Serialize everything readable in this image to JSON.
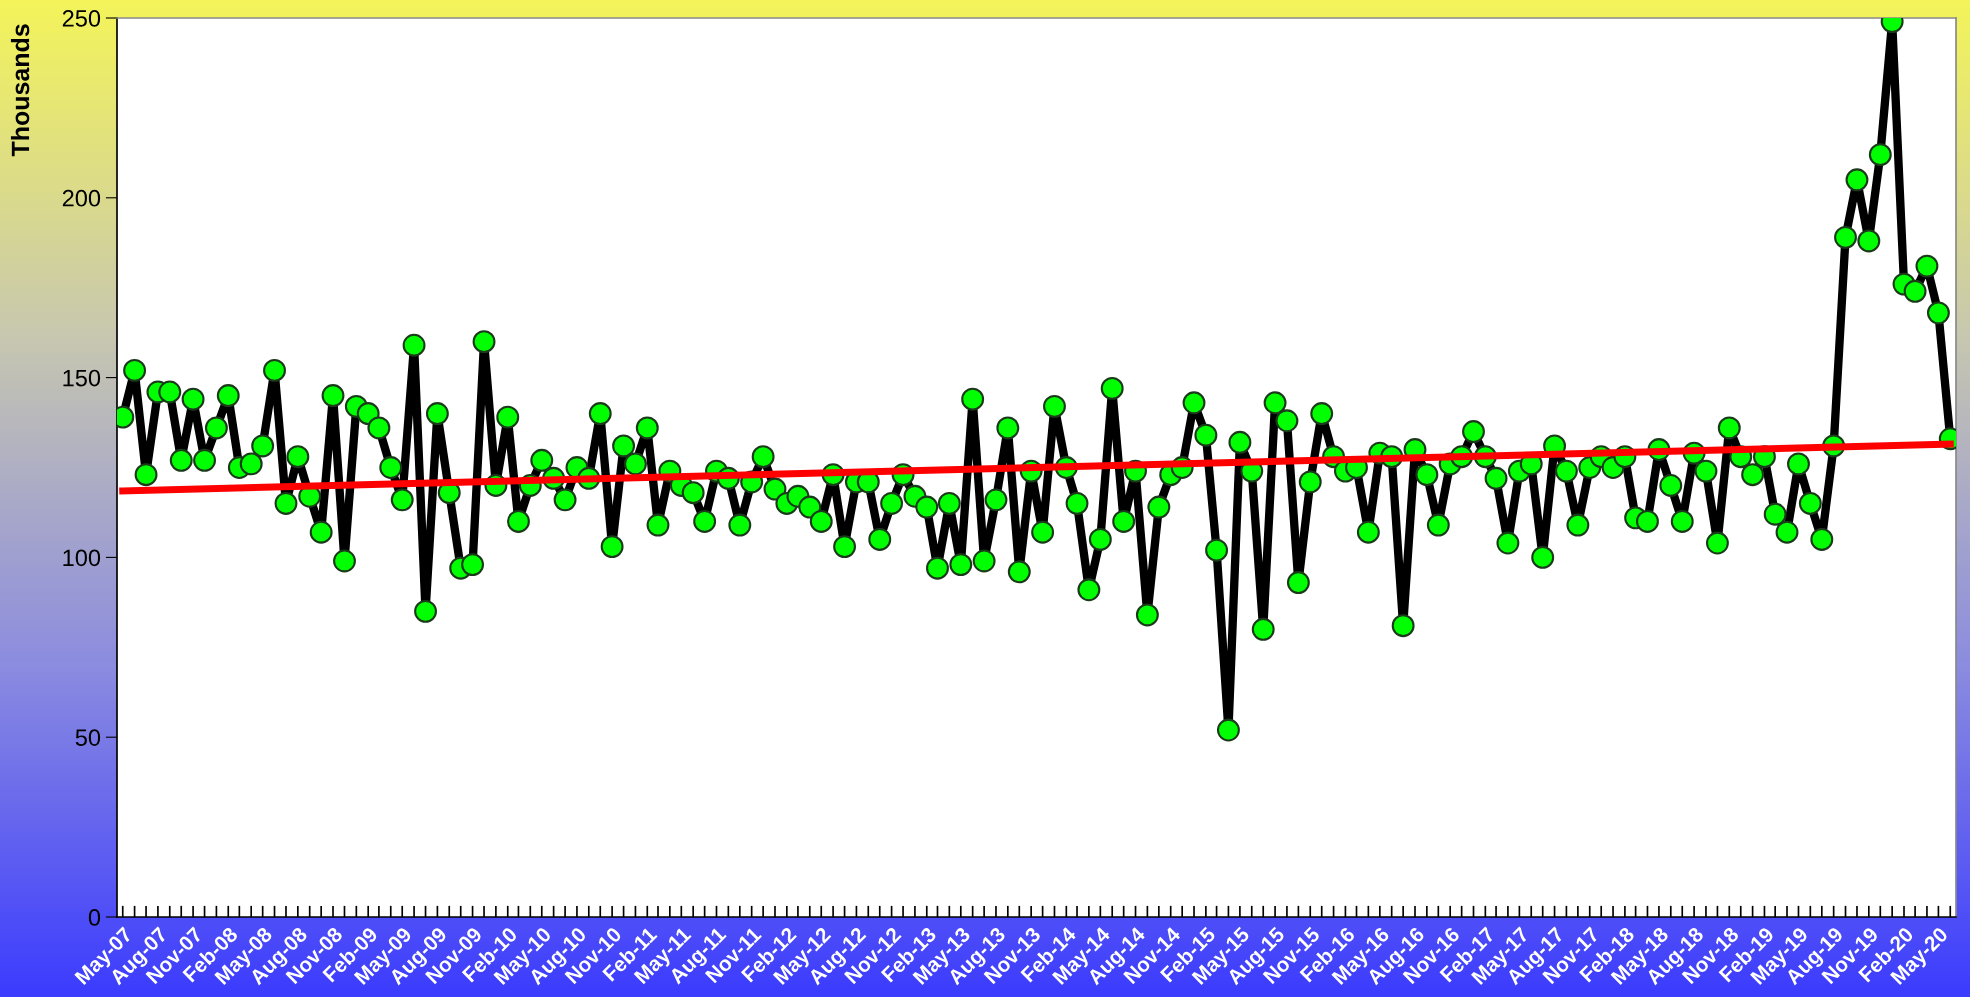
{
  "chart_data": {
    "type": "line",
    "ylabel": "Thousands",
    "x": [
      "2007-05",
      "2007-06",
      "2007-07",
      "2007-08",
      "2007-09",
      "2007-10",
      "2007-11",
      "2007-12",
      "2008-01",
      "2008-02",
      "2008-03",
      "2008-04",
      "2008-05",
      "2008-06",
      "2008-07",
      "2008-08",
      "2008-09",
      "2008-10",
      "2008-11",
      "2008-12",
      "2009-01",
      "2009-02",
      "2009-03",
      "2009-04",
      "2009-05",
      "2009-06",
      "2009-07",
      "2009-08",
      "2009-09",
      "2009-10",
      "2009-11",
      "2009-12",
      "2010-01",
      "2010-02",
      "2010-03",
      "2010-04",
      "2010-05",
      "2010-06",
      "2010-07",
      "2010-08",
      "2010-09",
      "2010-10",
      "2010-11",
      "2010-12",
      "2011-01",
      "2011-02",
      "2011-03",
      "2011-04",
      "2011-05",
      "2011-06",
      "2011-07",
      "2011-08",
      "2011-09",
      "2011-10",
      "2011-11",
      "2011-12",
      "2012-01",
      "2012-02",
      "2012-03",
      "2012-04",
      "2012-05",
      "2012-06",
      "2012-07",
      "2012-08",
      "2012-09",
      "2012-10",
      "2012-11",
      "2012-12",
      "2013-01",
      "2013-02",
      "2013-03",
      "2013-04",
      "2013-05",
      "2013-06",
      "2013-07",
      "2013-08",
      "2013-09",
      "2013-10",
      "2013-11",
      "2013-12",
      "2014-01",
      "2014-02",
      "2014-03",
      "2014-04",
      "2014-05",
      "2014-06",
      "2014-07",
      "2014-08",
      "2014-09",
      "2014-10",
      "2014-11",
      "2014-12",
      "2015-01",
      "2015-02",
      "2015-03",
      "2015-04",
      "2015-05",
      "2015-06",
      "2015-07",
      "2015-08",
      "2015-09",
      "2015-10",
      "2015-11",
      "2015-12",
      "2016-01",
      "2016-02",
      "2016-03",
      "2016-04",
      "2016-05",
      "2016-06",
      "2016-07",
      "2016-08",
      "2016-09",
      "2016-10",
      "2016-11",
      "2016-12",
      "2017-01",
      "2017-02",
      "2017-03",
      "2017-04",
      "2017-05",
      "2017-06",
      "2017-07",
      "2017-08",
      "2017-09",
      "2017-10",
      "2017-11",
      "2017-12",
      "2018-01",
      "2018-02",
      "2018-03",
      "2018-04",
      "2018-05",
      "2018-06",
      "2018-07",
      "2018-08",
      "2018-09",
      "2018-10",
      "2018-11",
      "2018-12",
      "2019-01",
      "2019-02",
      "2019-03",
      "2019-04",
      "2019-05",
      "2019-06",
      "2019-07",
      "2019-08",
      "2019-09",
      "2019-10",
      "2019-11",
      "2019-12",
      "2020-01",
      "2020-02",
      "2020-03",
      "2020-04",
      "2020-05",
      "2020-06"
    ],
    "series": [
      {
        "color": "#000000",
        "marker": "circle",
        "values": [
          139,
          152,
          123,
          146,
          146,
          127,
          144,
          127,
          136,
          145,
          125,
          126,
          131,
          152,
          115,
          128,
          117,
          107,
          145,
          99,
          142,
          140,
          136,
          125,
          116,
          159,
          85,
          140,
          118,
          97,
          98,
          160,
          120,
          139,
          110,
          120,
          127,
          122,
          116,
          125,
          122,
          140,
          103,
          131,
          126,
          136,
          109,
          124,
          120,
          118,
          110,
          124,
          122,
          109,
          121,
          128,
          119,
          115,
          117,
          114,
          110,
          123,
          103,
          121,
          121,
          105,
          115,
          123,
          117,
          114,
          97,
          115,
          98,
          144,
          99,
          116,
          136,
          96,
          124,
          107,
          142,
          125,
          115,
          91,
          105,
          147,
          110,
          124,
          84,
          114,
          123,
          125,
          143,
          134,
          102,
          52,
          132,
          124,
          80,
          143,
          138,
          93,
          121,
          140,
          128,
          124,
          125,
          107,
          129,
          128,
          81,
          130,
          123,
          109,
          126,
          128,
          135,
          128,
          122,
          104,
          124,
          126,
          100,
          131,
          124,
          109,
          125,
          128,
          125,
          128,
          111,
          110,
          130,
          120,
          110,
          129,
          124,
          104,
          136,
          128,
          123,
          128,
          112,
          107,
          126,
          115,
          105,
          131,
          189,
          205,
          188,
          212,
          249,
          176,
          174,
          181,
          168,
          133
        ]
      },
      {
        "color": "#ff0000",
        "marker": "none",
        "x": [
          "2007-05",
          "2020-06"
        ],
        "values": [
          118.5,
          131.5
        ]
      }
    ],
    "xlim": [
      "2007-04-16",
      "2020-06-16"
    ],
    "xticks": [
      {
        "value": "2007-05",
        "label": "May-07"
      },
      {
        "value": "2007-08",
        "label": "Aug-07"
      },
      {
        "value": "2007-11",
        "label": "Nov-07"
      },
      {
        "value": "2008-02",
        "label": "Feb-08"
      },
      {
        "value": "2008-05",
        "label": "May-08"
      },
      {
        "value": "2008-08",
        "label": "Aug-08"
      },
      {
        "value": "2008-11",
        "label": "Nov-08"
      },
      {
        "value": "2009-02",
        "label": "Feb-09"
      },
      {
        "value": "2009-05",
        "label": "May-09"
      },
      {
        "value": "2009-08",
        "label": "Aug-09"
      },
      {
        "value": "2009-11",
        "label": "Nov-09"
      },
      {
        "value": "2010-02",
        "label": "Feb-10"
      },
      {
        "value": "2010-05",
        "label": "May-10"
      },
      {
        "value": "2010-08",
        "label": "Aug-10"
      },
      {
        "value": "2010-11",
        "label": "Nov-10"
      },
      {
        "value": "2011-02",
        "label": "Feb-11"
      },
      {
        "value": "2011-05",
        "label": "May-11"
      },
      {
        "value": "2011-08",
        "label": "Aug-11"
      },
      {
        "value": "2011-11",
        "label": "Nov-11"
      },
      {
        "value": "2012-02",
        "label": "Feb-12"
      },
      {
        "value": "2012-05",
        "label": "May-12"
      },
      {
        "value": "2012-08",
        "label": "Aug-12"
      },
      {
        "value": "2012-11",
        "label": "Nov-12"
      },
      {
        "value": "2013-02",
        "label": "Feb-13"
      },
      {
        "value": "2013-05",
        "label": "May-13"
      },
      {
        "value": "2013-08",
        "label": "Aug-13"
      },
      {
        "value": "2013-11",
        "label": "Nov-13"
      },
      {
        "value": "2014-02",
        "label": "Feb-14"
      },
      {
        "value": "2014-05",
        "label": "May-14"
      },
      {
        "value": "2014-08",
        "label": "Aug-14"
      },
      {
        "value": "2014-11",
        "label": "Nov-14"
      },
      {
        "value": "2015-02",
        "label": "Feb-15"
      },
      {
        "value": "2015-05",
        "label": "May-15"
      },
      {
        "value": "2015-08",
        "label": "Aug-15"
      },
      {
        "value": "2015-11",
        "label": "Nov-15"
      },
      {
        "value": "2016-02",
        "label": "Feb-16"
      },
      {
        "value": "2016-05",
        "label": "May-16"
      },
      {
        "value": "2016-08",
        "label": "Aug-16"
      },
      {
        "value": "2016-11",
        "label": "Nov-16"
      },
      {
        "value": "2017-02",
        "label": "Feb-17"
      },
      {
        "value": "2017-05",
        "label": "May-17"
      },
      {
        "value": "2017-08",
        "label": "Aug-17"
      },
      {
        "value": "2017-11",
        "label": "Nov-17"
      },
      {
        "value": "2018-02",
        "label": "Feb-18"
      },
      {
        "value": "2018-05",
        "label": "May-18"
      },
      {
        "value": "2018-08",
        "label": "Aug-18"
      },
      {
        "value": "2018-11",
        "label": "Nov-18"
      },
      {
        "value": "2019-02",
        "label": "Feb-19"
      },
      {
        "value": "2019-05",
        "label": "May-19"
      },
      {
        "value": "2019-08",
        "label": "Aug-19"
      },
      {
        "value": "2019-11",
        "label": "Nov-19"
      },
      {
        "value": "2020-02",
        "label": "Feb-20"
      },
      {
        "value": "2020-05",
        "label": "May-20"
      }
    ],
    "ylim": [
      0,
      250
    ],
    "yticks": [
      0,
      50,
      100,
      150,
      200,
      250
    ],
    "grid": false,
    "line_style": "solid"
  }
}
